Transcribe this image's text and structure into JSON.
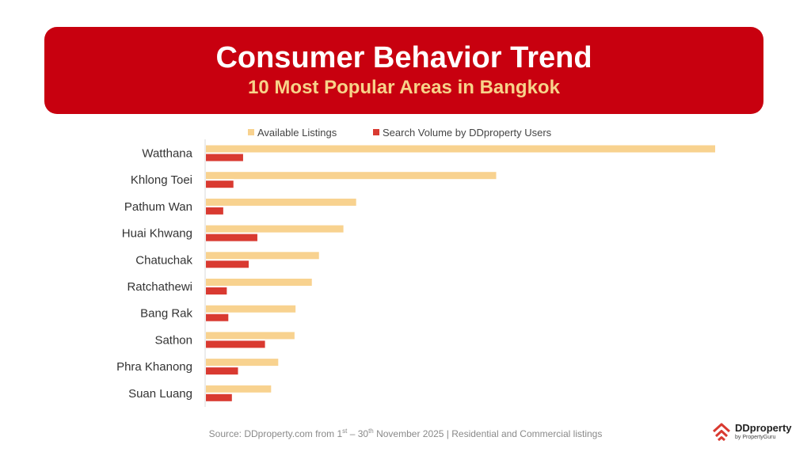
{
  "header": {
    "title": "Consumer Behavior Trend",
    "subtitle": "10 Most Popular Areas in Bangkok"
  },
  "colors": {
    "banner": "#c8000f",
    "available": "#f8d28f",
    "search": "#d93a31"
  },
  "chart_data": {
    "type": "bar",
    "orientation": "horizontal",
    "categories": [
      "Watthana",
      "Khlong Toei",
      "Pathum Wan",
      "Huai Khwang",
      "Chatuchak",
      "Ratchathewi",
      "Bang Rak",
      "Sathon",
      "Phra Khanong",
      "Suan Luang"
    ],
    "series": [
      {
        "name": "Available Listings",
        "values": [
          100,
          57,
          29.5,
          27,
          22.2,
          20.8,
          17.6,
          17.4,
          14.2,
          12.8
        ]
      },
      {
        "name": "Search Volume by DDproperty Users",
        "values": [
          7.3,
          5.4,
          3.4,
          10.1,
          8.4,
          4.1,
          4.4,
          11.6,
          6.3,
          5.1
        ]
      }
    ],
    "legend_position": "top",
    "grid": false,
    "xlabel": "",
    "ylabel": ""
  },
  "footer": {
    "source_pre": "Source: DDproperty.com from 1",
    "sup1": "st",
    "source_mid": "  – 30",
    "sup2": "th",
    "source_post": " November 2025 | Residential and Commercial listings"
  },
  "logo": {
    "name": "DDproperty",
    "by": "by PropertyGuru"
  }
}
